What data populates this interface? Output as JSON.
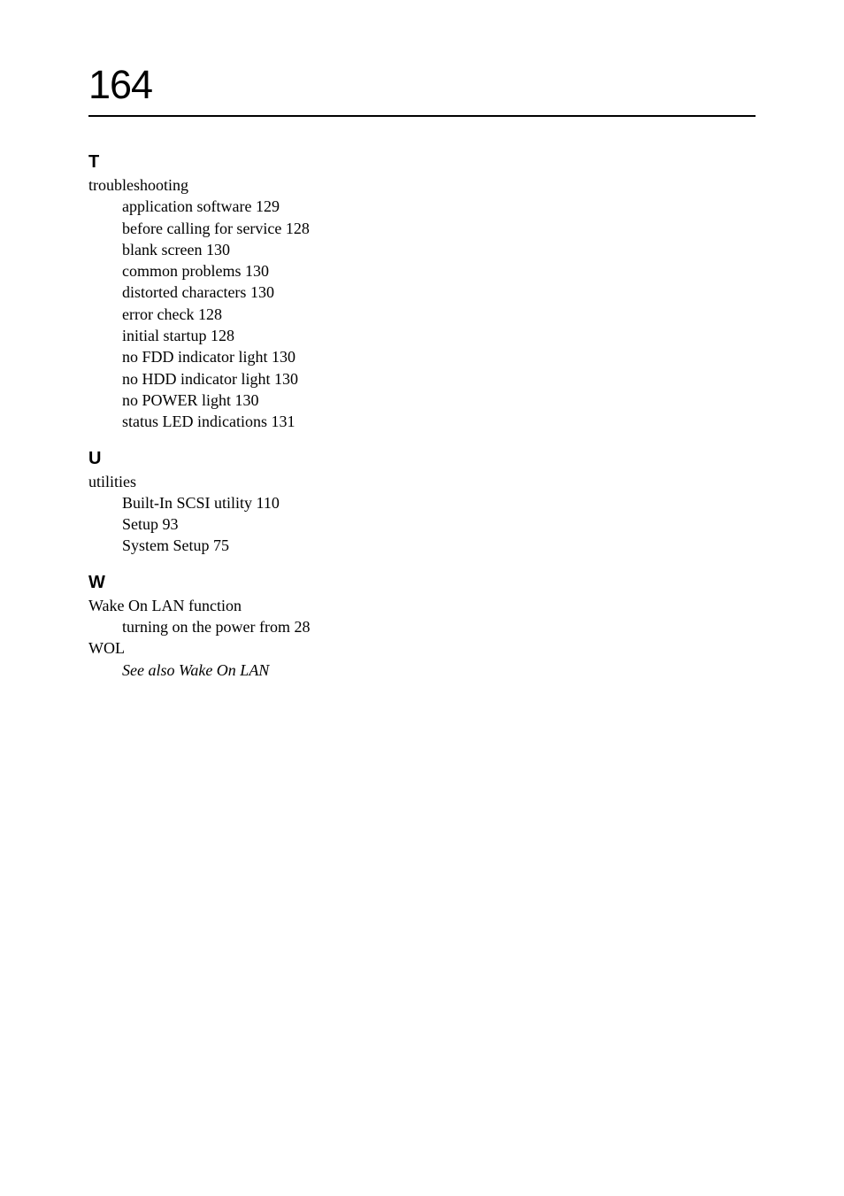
{
  "page_number": "164",
  "sections": [
    {
      "letter": "T",
      "entries": [
        {
          "text": "troubleshooting",
          "indent": 0,
          "italic": false,
          "page": null
        },
        {
          "text": "application software ",
          "indent": 1,
          "italic": false,
          "page": "129"
        },
        {
          "text": "before calling for service ",
          "indent": 1,
          "italic": false,
          "page": "128"
        },
        {
          "text": "blank screen ",
          "indent": 1,
          "italic": false,
          "page": "130"
        },
        {
          "text": "common problems ",
          "indent": 1,
          "italic": false,
          "page": "130"
        },
        {
          "text": "distorted characters ",
          "indent": 1,
          "italic": false,
          "page": "130"
        },
        {
          "text": "error check ",
          "indent": 1,
          "italic": false,
          "page": "128"
        },
        {
          "text": "initial startup ",
          "indent": 1,
          "italic": false,
          "page": "128"
        },
        {
          "text": "no FDD indicator light ",
          "indent": 1,
          "italic": false,
          "page": "130"
        },
        {
          "text": "no HDD indicator light ",
          "indent": 1,
          "italic": false,
          "page": "130"
        },
        {
          "text": "no POWER light ",
          "indent": 1,
          "italic": false,
          "page": "130"
        },
        {
          "text": "status LED indications ",
          "indent": 1,
          "italic": false,
          "page": "131"
        }
      ]
    },
    {
      "letter": "U",
      "entries": [
        {
          "text": "utilities",
          "indent": 0,
          "italic": false,
          "page": null
        },
        {
          "text": "Built-In SCSI utility ",
          "indent": 1,
          "italic": false,
          "page": "110"
        },
        {
          "text": "Setup ",
          "indent": 1,
          "italic": false,
          "page": "93"
        },
        {
          "text": "System Setup ",
          "indent": 1,
          "italic": false,
          "page": "75"
        }
      ]
    },
    {
      "letter": "W",
      "entries": [
        {
          "text": "Wake On LAN function",
          "indent": 0,
          "italic": false,
          "page": null
        },
        {
          "text": "turning on the power from ",
          "indent": 1,
          "italic": false,
          "page": "28"
        },
        {
          "text": "WOL",
          "indent": 0,
          "italic": false,
          "page": null
        },
        {
          "text": "See also Wake On LAN",
          "indent": 1,
          "italic": true,
          "page": null
        }
      ]
    }
  ]
}
